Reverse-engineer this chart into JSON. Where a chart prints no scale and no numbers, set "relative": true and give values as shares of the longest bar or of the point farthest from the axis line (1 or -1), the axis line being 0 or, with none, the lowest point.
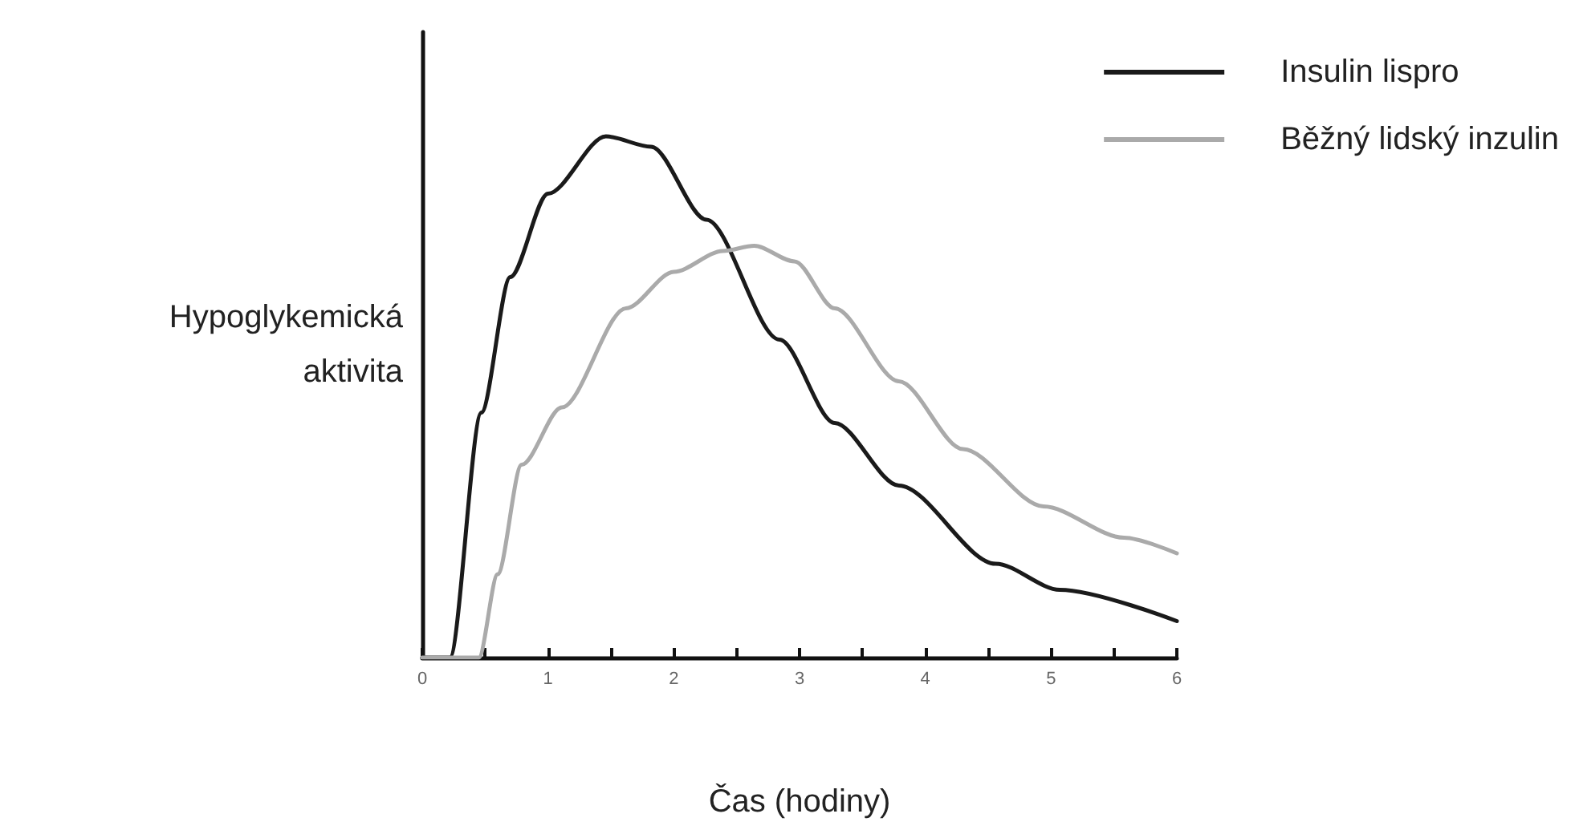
{
  "chart_data": {
    "type": "line",
    "relative": true,
    "xlabel": "Čas (hodiny)",
    "ylabel": "Hypoglykemická\naktivita",
    "xlim": [
      0,
      6
    ],
    "xticks": [
      0,
      {
        "value": 0.5,
        "label": null
      },
      1,
      {
        "value": 1.5,
        "label": null
      },
      2,
      {
        "value": 2.5,
        "label": null
      },
      3,
      {
        "value": 3.5,
        "label": null
      },
      4,
      {
        "value": 4.5,
        "label": null
      },
      5,
      {
        "value": 5.5,
        "label": null
      },
      6
    ],
    "legend": "top right",
    "grid": false,
    "marker": "none",
    "line_style": "solid",
    "series": [
      {
        "name": "Insulin lispro",
        "color": "#1a1a1a",
        "x": [
          0,
          0.22,
          0.47,
          0.7,
          1.0,
          1.46,
          1.82,
          2.26,
          2.84,
          3.28,
          3.79,
          4.56,
          5.07,
          6
        ],
        "values": [
          0,
          0,
          0.47,
          0.73,
          0.89,
          1,
          0.98,
          0.84,
          0.61,
          0.45,
          0.33,
          0.18,
          0.13,
          0.07
        ]
      },
      {
        "name": "Běžný lidský inzulin",
        "color": "#aaaaaa",
        "x": [
          0,
          0.45,
          0.6,
          0.79,
          1.11,
          1.62,
          2.0,
          2.39,
          2.64,
          2.96,
          3.28,
          3.79,
          4.3,
          4.94,
          5.58,
          6
        ],
        "values": [
          0,
          0,
          0.16,
          0.37,
          0.48,
          0.67,
          0.74,
          0.78,
          0.79,
          0.76,
          0.67,
          0.53,
          0.4,
          0.29,
          0.23,
          0.2
        ]
      }
    ]
  }
}
